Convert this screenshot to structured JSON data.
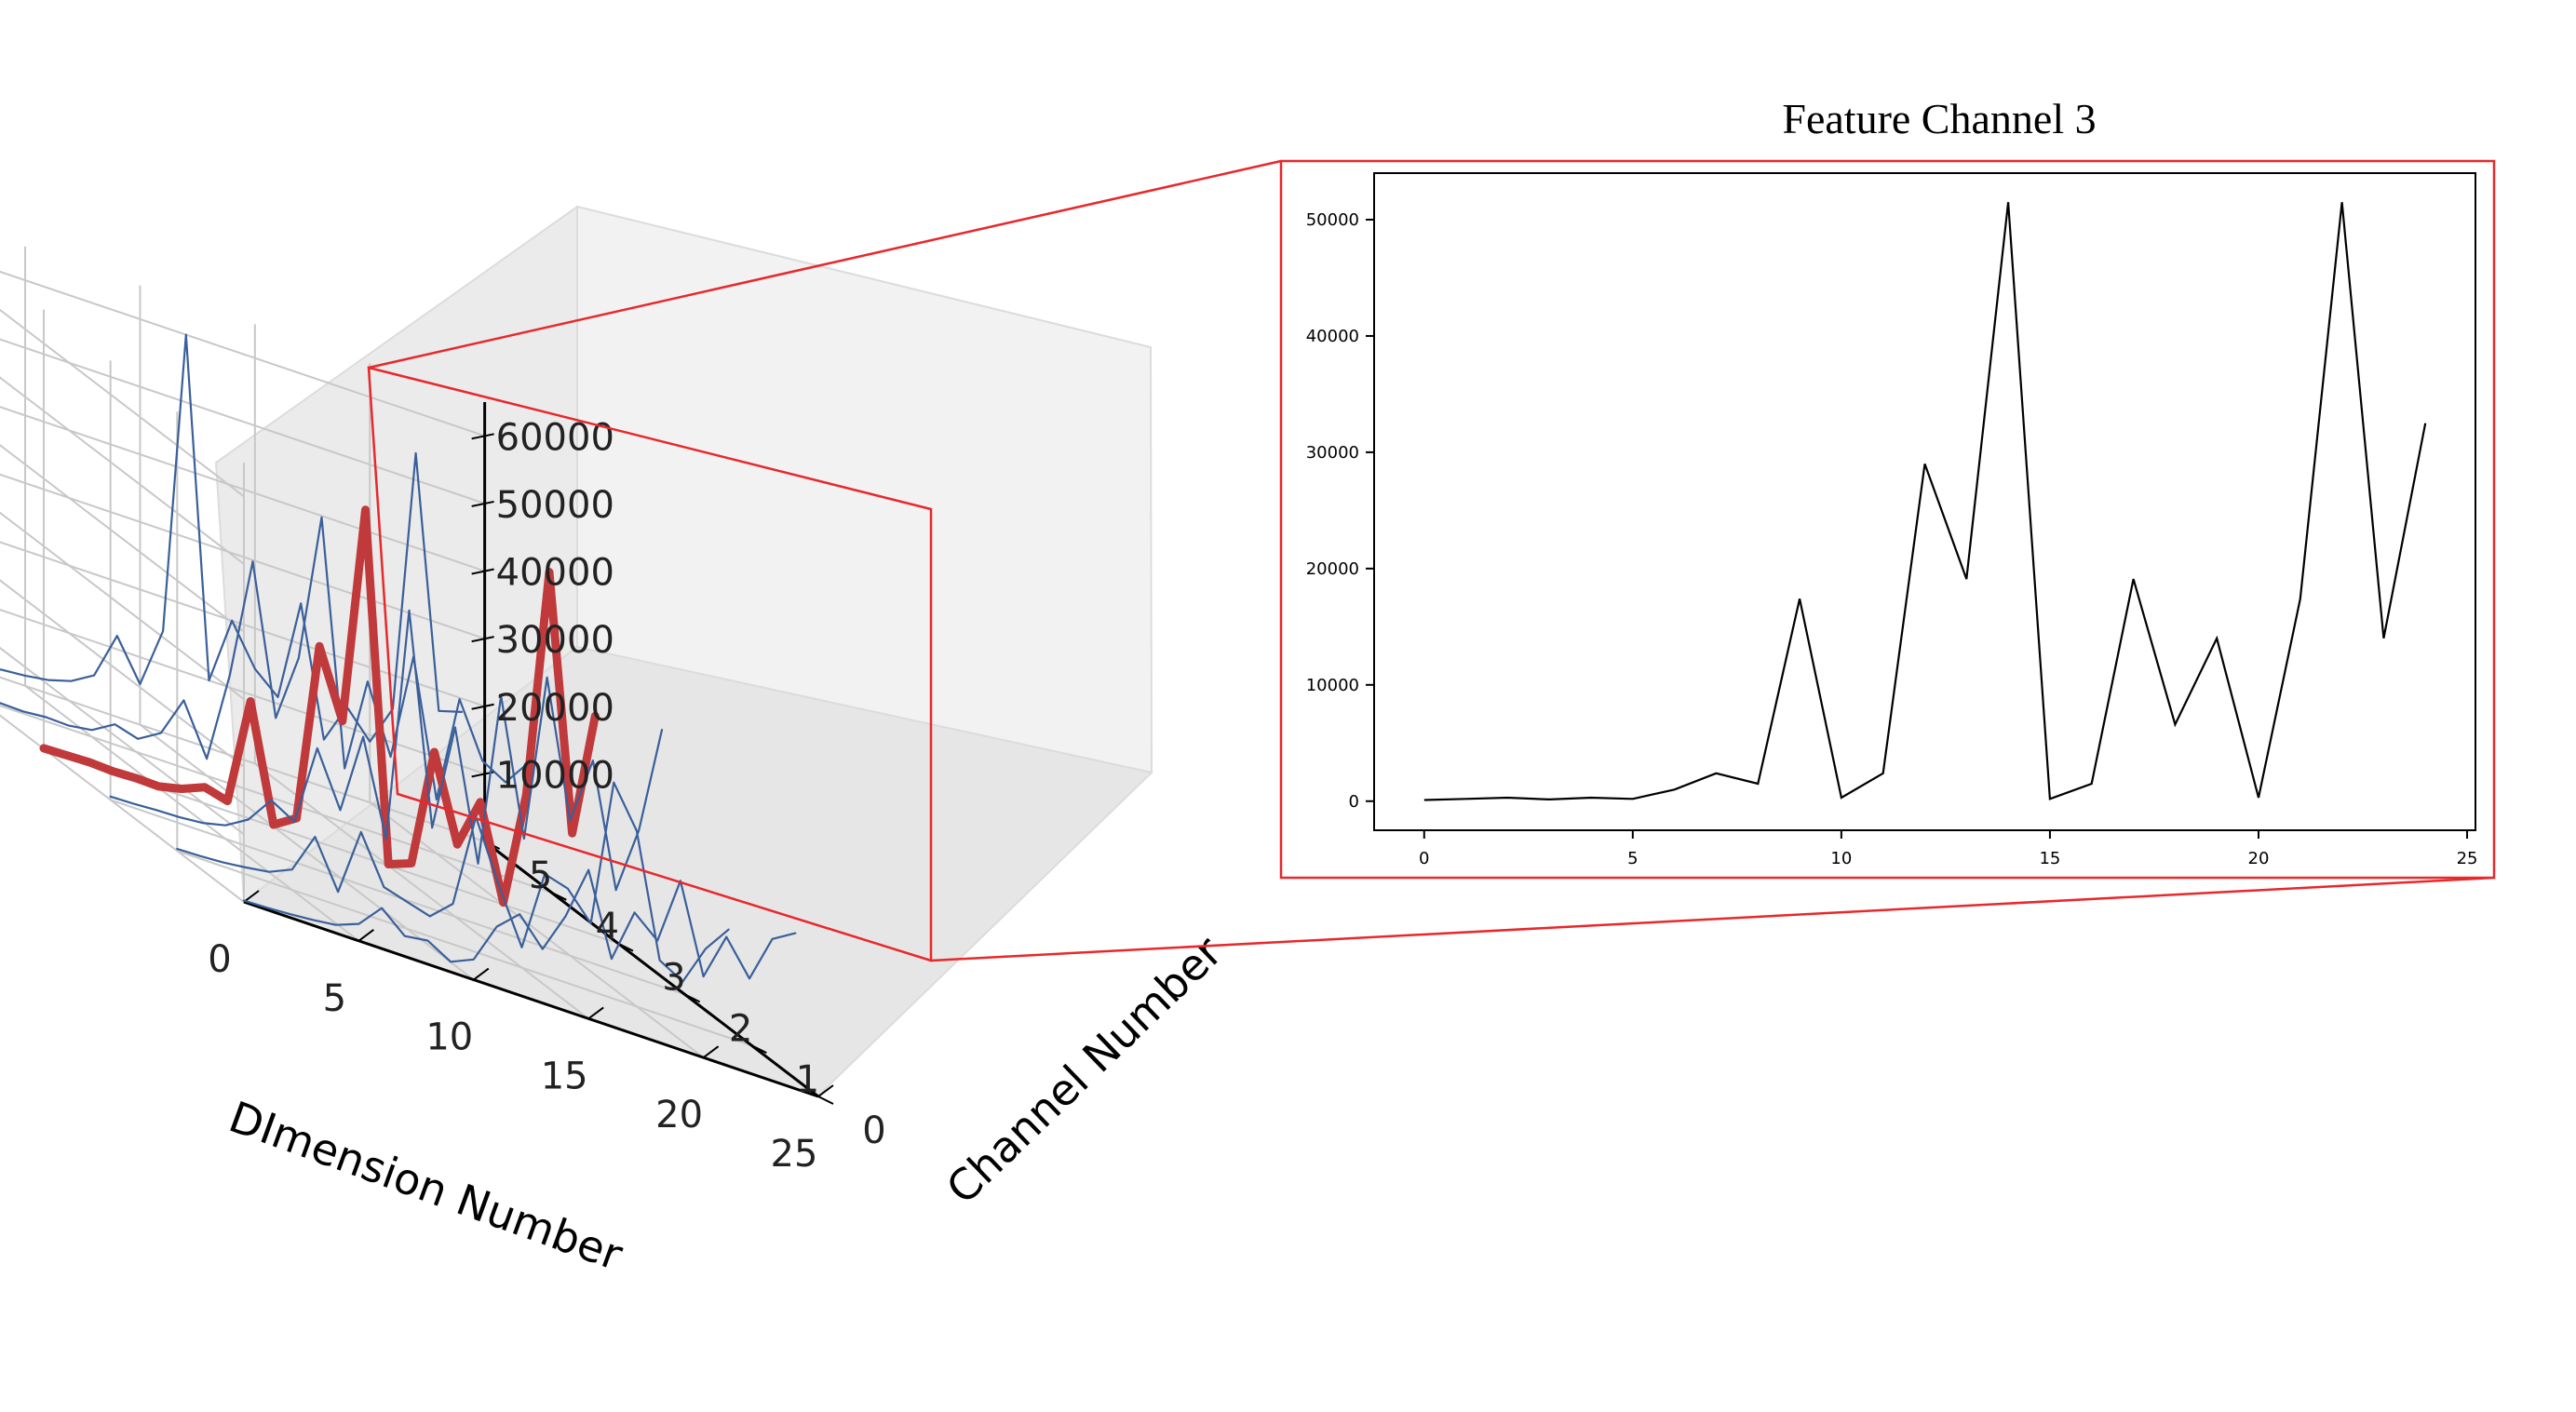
{
  "figure": {
    "inset_title": "Feature Channel 3",
    "colors": {
      "background": "#ffffff",
      "pane": "#f2f2f2",
      "grid": "#c8c8c8",
      "series": "#3a5f9a",
      "highlight": "#c0393b",
      "inset_line": "#000000",
      "callout": "#e8282b"
    }
  },
  "chart_data": [
    {
      "type": "line",
      "projection": "3d",
      "title": "",
      "xlabel": "DImension Number",
      "ylabel": "Channel Number",
      "zlabel": "",
      "xlim": [
        0,
        25
      ],
      "ylim": [
        0,
        5
      ],
      "zlim": [
        0,
        65000
      ],
      "x_ticks": [
        0,
        5,
        10,
        15,
        20,
        25
      ],
      "y_ticks": [
        0,
        1,
        2,
        3,
        4,
        5
      ],
      "z_ticks": [
        10000,
        20000,
        30000,
        40000,
        50000,
        60000
      ],
      "grid": true,
      "highlighted_channel": 3,
      "x": [
        0,
        1,
        2,
        3,
        4,
        5,
        6,
        7,
        8,
        9,
        10,
        11,
        12,
        13,
        14,
        15,
        16,
        17,
        18,
        19,
        20,
        21,
        22,
        23,
        24
      ],
      "series": [
        {
          "channel": 0,
          "values": [
            200,
            300,
            500,
            800,
            1200,
            2500,
            6000,
            3000,
            3500,
            1500,
            3000,
            9000,
            12000,
            8000,
            14000,
            22000,
            10000,
            18000,
            15000,
            25000,
            12000,
            19000,
            14000,
            21000,
            23000
          ]
        },
        {
          "channel": 1,
          "values": [
            300,
            400,
            600,
            1000,
            1500,
            3000,
            9000,
            2000,
            12000,
            5000,
            4000,
            3000,
            6000,
            20000,
            11000,
            3000,
            15000,
            14000,
            10000,
            32000,
            26000,
            8000,
            6000,
            12000,
            16000
          ]
        },
        {
          "channel": 2,
          "values": [
            500,
            600,
            800,
            900,
            1200,
            2000,
            4000,
            8000,
            6000,
            18000,
            10000,
            22000,
            8000,
            43000,
            12000,
            28000,
            9000,
            35000,
            15000,
            40000,
            20000,
            30000,
            12000,
            22000,
            38000
          ]
        },
        {
          "channel": 3,
          "values": [
            100,
            200,
            300,
            150,
            300,
            200,
            1000,
            2400,
            1500,
            17400,
            300,
            2400,
            29000,
            19100,
            51500,
            200,
            1500,
            19100,
            6600,
            14000,
            300,
            17400,
            51500,
            14000,
            32500
          ]
        },
        {
          "channel": 4,
          "values": [
            200,
            400,
            300,
            600,
            500,
            1000,
            3000,
            2000,
            4000,
            10000,
            2500,
            16000,
            34000,
            12000,
            22000,
            44000,
            8000,
            22000,
            12000,
            28000,
            8000,
            24000,
            16000,
            14000,
            18000
          ]
        },
        {
          "channel": 5,
          "values": [
            300,
            500,
            400,
            700,
            1200,
            1500,
            2000,
            3000,
            5000,
            12000,
            6000,
            15000,
            60000,
            10000,
            20000,
            14000,
            11000,
            26000,
            7000,
            13000,
            9000,
            15000,
            54000,
            17000,
            18000
          ]
        }
      ]
    },
    {
      "type": "line",
      "title": "Feature Channel 3",
      "xlabel": "",
      "ylabel": "",
      "xlim": [
        -1.2,
        25.2
      ],
      "ylim": [
        -2500,
        54000
      ],
      "x_ticks": [
        0,
        5,
        10,
        15,
        20,
        25
      ],
      "y_ticks": [
        0,
        10000,
        20000,
        30000,
        40000,
        50000
      ],
      "grid": false,
      "x": [
        0,
        1,
        2,
        3,
        4,
        5,
        6,
        7,
        8,
        9,
        10,
        11,
        12,
        13,
        14,
        15,
        16,
        17,
        18,
        19,
        20,
        21,
        22,
        23,
        24
      ],
      "values": [
        100,
        200,
        300,
        150,
        300,
        200,
        1000,
        2400,
        1500,
        17400,
        300,
        2400,
        29000,
        19100,
        51500,
        200,
        1500,
        19100,
        6600,
        14000,
        300,
        17400,
        51500,
        14000,
        32500
      ]
    }
  ]
}
